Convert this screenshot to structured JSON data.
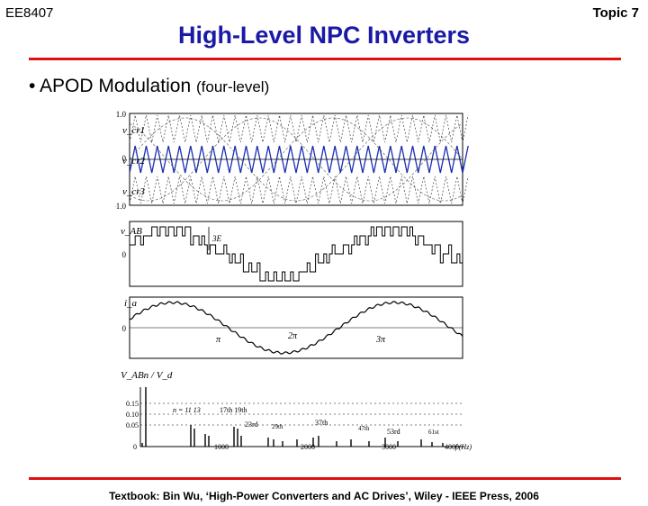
{
  "header": {
    "course": "EE8407",
    "topic": "Topic 7",
    "title": "High-Level NPC Inverters"
  },
  "bullet": {
    "marker": "•",
    "main": "APOD Modulation",
    "sub": "(four-level)"
  },
  "figure": {
    "carrier_panel": {
      "labels": [
        "v_cr1",
        "v_cr2",
        "v_cr3"
      ],
      "ticks": [
        "1.0",
        "0",
        "-1.0"
      ]
    },
    "vab_panel": {
      "label": "v_AB",
      "annotation": "3E",
      "tick_zero": "0"
    },
    "ia_panel": {
      "label": "i_a",
      "tick_zero": "0",
      "angles": [
        "π",
        "2π",
        "3π"
      ]
    },
    "spectrum_panel": {
      "label": "V_ABn / V_d",
      "y_ticks": [
        "0.15",
        "0.10",
        "0.05",
        "0"
      ],
      "x_ticks": [
        "0",
        "1000",
        "2000",
        "3000",
        "4000"
      ],
      "x_unit": "f (Hz)",
      "harmonics": [
        "n = 11 13",
        "17th 19th",
        "23rd",
        "29th",
        "37th",
        "47th",
        "53rd",
        "61st"
      ]
    }
  },
  "caption": "Textbook: Bin Wu, ‘High-Power Converters and AC Drives’, Wiley - IEEE Press, 2006"
}
